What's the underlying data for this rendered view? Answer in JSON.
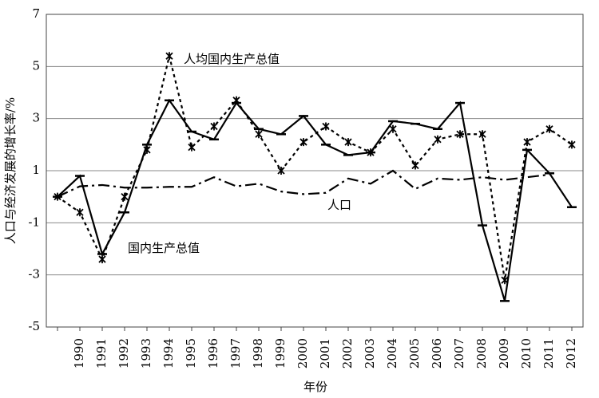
{
  "chart_data": {
    "type": "line",
    "y_label": "人口与经济发展的增长率/%",
    "x_label": "年份",
    "categories": [
      null,
      "1990",
      "1991",
      "1992",
      "1993",
      "1994",
      "1995",
      "1996",
      "1997",
      "1998",
      "1999",
      "2000",
      "2001",
      "2002",
      "2003",
      "2004",
      "2005",
      "2006",
      "2007",
      "2008",
      "2009",
      "2010",
      "2011",
      "2012"
    ],
    "series": [
      {
        "name": "国内生产总值",
        "color": "#000000",
        "line_style": "solid",
        "marker": "bar",
        "values": [
          0,
          0.8,
          -2.2,
          -0.6,
          2.0,
          3.7,
          2.5,
          2.2,
          3.6,
          2.6,
          2.4,
          3.1,
          2.0,
          1.6,
          1.7,
          2.9,
          2.8,
          2.6,
          3.6,
          -1.1,
          -4.0,
          1.8,
          0.9,
          -0.4
        ]
      },
      {
        "name": "人均国内生产总值",
        "color": "#000000",
        "line_style": "dotted",
        "marker": "asterisk",
        "values": [
          0,
          -0.6,
          -2.4,
          0,
          1.8,
          5.4,
          1.9,
          2.7,
          3.7,
          2.4,
          1.0,
          2.1,
          2.7,
          2.1,
          1.7,
          2.6,
          1.2,
          2.2,
          2.4,
          2.4,
          -3.2,
          2.1,
          2.6,
          2.0
        ]
      },
      {
        "name": "人口",
        "color": "#000000",
        "line_style": "dashdot",
        "marker": "none",
        "values": [
          0.0,
          0.4,
          0.45,
          0.35,
          0.35,
          0.38,
          0.38,
          0.75,
          0.4,
          0.5,
          0.2,
          0.1,
          0.15,
          0.7,
          0.5,
          1.0,
          0.3,
          0.7,
          0.65,
          0.75,
          0.65,
          0.75,
          0.85,
          null
        ]
      }
    ],
    "ylim": [
      -5,
      7
    ],
    "yticks": [
      -5,
      -3,
      -1,
      1,
      3,
      5,
      7
    ],
    "grid": true
  }
}
